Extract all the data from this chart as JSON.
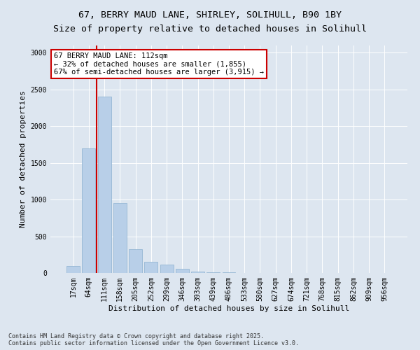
{
  "title_line1": "67, BERRY MAUD LANE, SHIRLEY, SOLIHULL, B90 1BY",
  "title_line2": "Size of property relative to detached houses in Solihull",
  "xlabel": "Distribution of detached houses by size in Solihull",
  "ylabel": "Number of detached properties",
  "categories": [
    "17sqm",
    "64sqm",
    "111sqm",
    "158sqm",
    "205sqm",
    "252sqm",
    "299sqm",
    "346sqm",
    "393sqm",
    "439sqm",
    "486sqm",
    "533sqm",
    "580sqm",
    "627sqm",
    "674sqm",
    "721sqm",
    "768sqm",
    "815sqm",
    "862sqm",
    "909sqm",
    "956sqm"
  ],
  "values": [
    100,
    1700,
    2400,
    950,
    320,
    155,
    110,
    60,
    20,
    8,
    5,
    2,
    2,
    0,
    0,
    0,
    0,
    0,
    0,
    0,
    0
  ],
  "bar_color": "#b8cfe8",
  "bar_edge_color": "#8aafcf",
  "highlight_color": "#cc0000",
  "annotation_line1": "67 BERRY MAUD LANE: 112sqm",
  "annotation_line2": "← 32% of detached houses are smaller (1,855)",
  "annotation_line3": "67% of semi-detached houses are larger (3,915) →",
  "annotation_box_color": "#ffffff",
  "annotation_box_edge": "#cc0000",
  "vline_x": 1.5,
  "ylim": [
    0,
    3100
  ],
  "yticks": [
    0,
    500,
    1000,
    1500,
    2000,
    2500,
    3000
  ],
  "background_color": "#dde6f0",
  "plot_bg_color": "#dde6f0",
  "footer_text": "Contains HM Land Registry data © Crown copyright and database right 2025.\nContains public sector information licensed under the Open Government Licence v3.0.",
  "title_fontsize": 9.5,
  "label_fontsize": 8,
  "tick_fontsize": 7,
  "annot_fontsize": 7.5
}
